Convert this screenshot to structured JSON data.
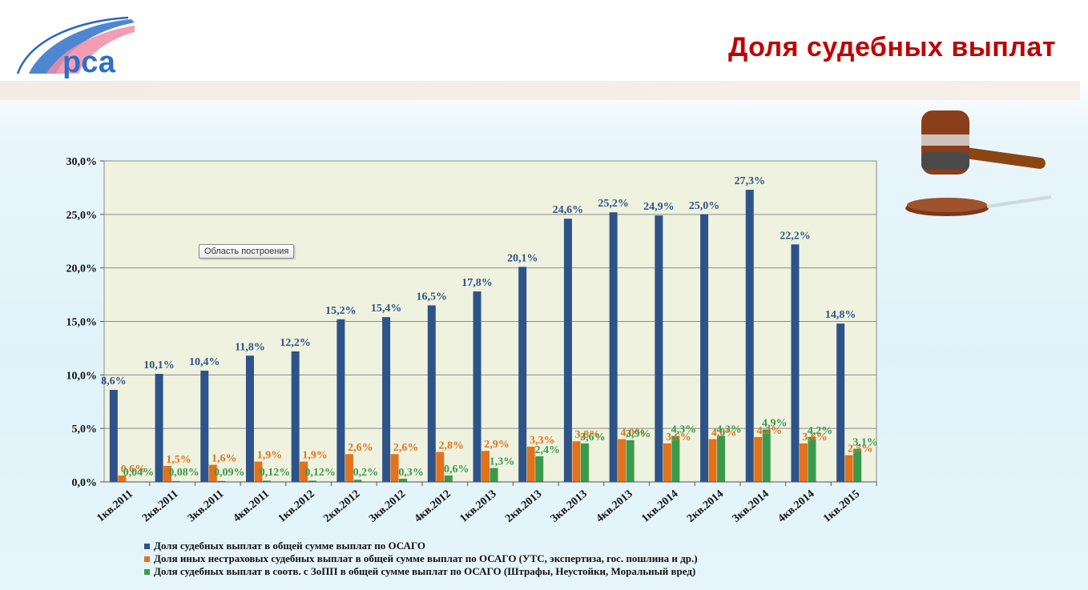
{
  "slide": {
    "title": "Доля судебных выплат",
    "logo_text": "рса"
  },
  "tooltip": "Область построения",
  "colors": {
    "title": "#c00000",
    "series1": "#2e5389",
    "series2": "#e2721b",
    "series3": "#3a9a4c",
    "plot_bg": "#eef2de"
  },
  "chart_data": {
    "type": "bar",
    "categories": [
      "1кв.2011",
      "2кв.2011",
      "3кв.2011",
      "4кв.2011",
      "1кв.2012",
      "2кв.2012",
      "3кв.2012",
      "4кв.2012",
      "1кв.2013",
      "2кв.2013",
      "3кв.2013",
      "4кв.2013",
      "1кв.2014",
      "2кв.2014",
      "3кв.2014",
      "4кв.2014",
      "1кв.2015"
    ],
    "ylim": [
      0,
      30
    ],
    "yticks": [
      "0,0%",
      "5,0%",
      "10,0%",
      "15,0%",
      "20,0%",
      "25,0%",
      "30,0%"
    ],
    "grid": true,
    "legend_position": "bottom",
    "series": [
      {
        "name": "Доля судебных выплат в общей сумме выплат по ОСАГО",
        "values": [
          8.6,
          10.1,
          10.4,
          11.8,
          12.2,
          15.2,
          15.4,
          16.5,
          17.8,
          20.1,
          24.6,
          25.2,
          24.9,
          25.0,
          27.3,
          22.2,
          14.8
        ],
        "labels": [
          "8,6%",
          "10,1%",
          "10,4%",
          "11,8%",
          "12,2%",
          "15,2%",
          "15,4%",
          "16,5%",
          "17,8%",
          "20,1%",
          "24,6%",
          "25,2%",
          "24,9%",
          "25,0%",
          "27,3%",
          "22,2%",
          "14,8%"
        ]
      },
      {
        "name": "Доля иных нестраховых судебных выплат в общей сумме выплат по ОСАГО (УТС, экспертиза, гос. пошлина и др.)",
        "values": [
          0.6,
          1.5,
          1.6,
          1.9,
          1.9,
          2.6,
          2.6,
          2.8,
          2.9,
          3.3,
          3.8,
          4.0,
          3.6,
          4.0,
          4.2,
          3.6,
          2.5
        ],
        "labels": [
          "0,6%",
          "1,5%",
          "1,6%",
          "1,9%",
          "1,9%",
          "2,6%",
          "2,6%",
          "2,8%",
          "2,9%",
          "3,3%",
          "3,8%",
          "4,0%",
          "3,6%",
          "4,0%",
          "4,2%",
          "3,6%",
          "2,5%"
        ]
      },
      {
        "name": "Доля судебных выплат в соотв. с ЗоПП в общей сумме выплат по ОСАГО (Штрафы, Неустойки, Моральный вред)",
        "values": [
          0.04,
          0.08,
          0.09,
          0.12,
          0.12,
          0.2,
          0.3,
          0.6,
          1.3,
          2.4,
          3.6,
          3.9,
          4.3,
          4.3,
          4.9,
          4.2,
          3.1
        ],
        "labels": [
          "0,04%",
          "0,08%",
          "0,09%",
          "0,12%",
          "0,12%",
          "0,2%",
          "0,3%",
          "0,6%",
          "1,3%",
          "2,4%",
          "3,6%",
          "3,9%",
          "4,3%",
          "4,3%",
          "4,9%",
          "4,2%",
          "3,1%"
        ]
      }
    ]
  }
}
